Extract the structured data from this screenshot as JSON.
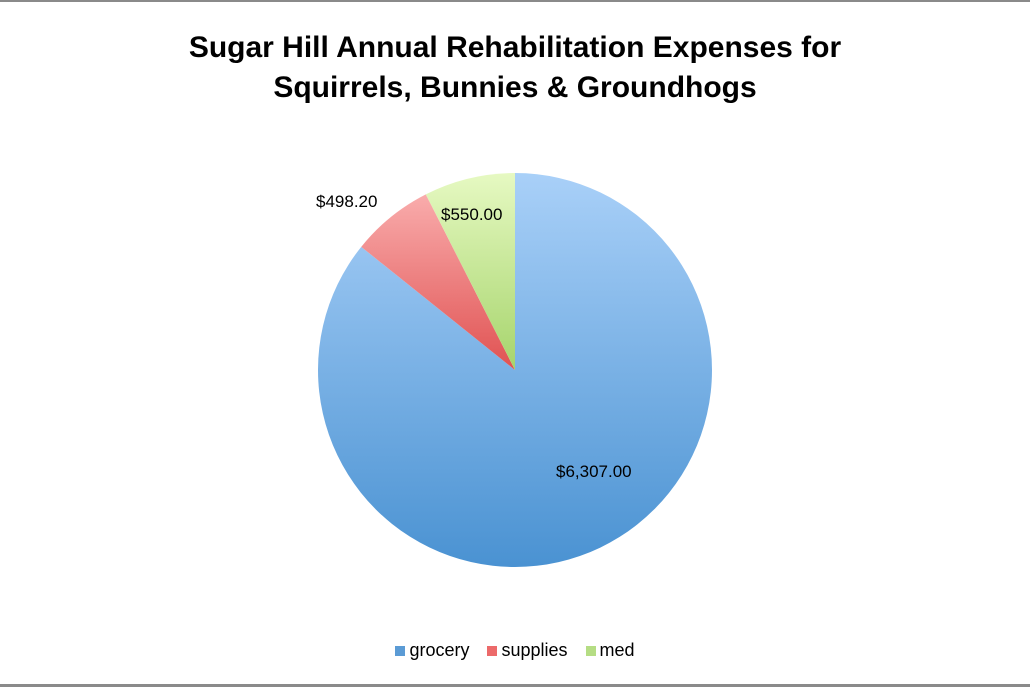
{
  "chart_data": {
    "type": "pie",
    "title_line1": "Sugar Hill Annual Rehabilitation Expenses for",
    "title_line2": "Squirrels, Bunnies & Groundhogs",
    "categories": [
      "grocery",
      "supplies",
      "med"
    ],
    "values": [
      6307.0,
      498.2,
      550.0
    ],
    "data_labels": [
      "$6,307.00",
      "$498.20",
      "$550.00"
    ],
    "colors": [
      "#5b9bd5",
      "#ec6a6a",
      "#b5dd84"
    ],
    "legend_position": "bottom",
    "start_angle": "top, clockwise"
  }
}
